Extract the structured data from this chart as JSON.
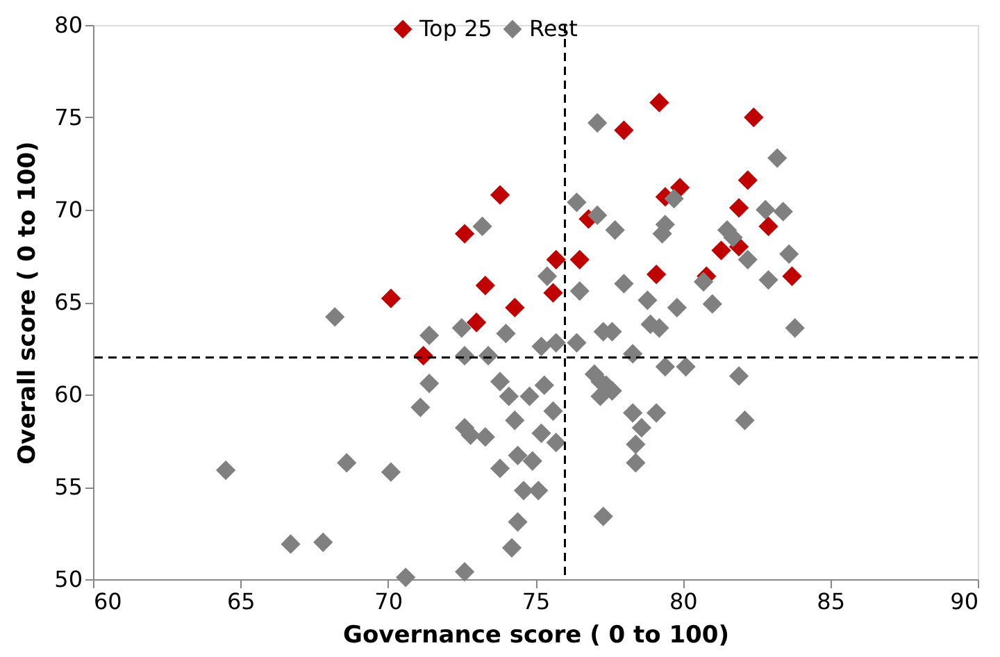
{
  "chart_data": {
    "type": "scatter",
    "xlabel": "Governance score ( 0 to 100)",
    "ylabel": "Overall score ( 0 to 100)",
    "xlim": [
      60,
      90
    ],
    "xticks": [
      60,
      65,
      70,
      75,
      80,
      85,
      90
    ],
    "ylim": [
      50,
      80
    ],
    "yticks": [
      50,
      55,
      60,
      65,
      70,
      75,
      80
    ],
    "grid": false,
    "legend": "top",
    "marker": "diamond",
    "ref_lines": [
      {
        "axis": "x",
        "value": 76,
        "line_style": "dashed",
        "color": "#000000"
      },
      {
        "axis": "y",
        "value": 62,
        "line_style": "dashed",
        "color": "#000000"
      }
    ],
    "series": [
      {
        "name": "Top 25",
        "color": "#c00000",
        "x": [
          78.0,
          73.8,
          72.6,
          76.5,
          75.7,
          73.3,
          75.6,
          70.1,
          74.3,
          73.0,
          71.2,
          76.8,
          79.2,
          82.4,
          82.2,
          79.9,
          79.4,
          81.9,
          82.9,
          81.3,
          81.9,
          79.1,
          80.8,
          83.7
        ],
        "values": [
          74.3,
          70.8,
          68.7,
          67.3,
          67.3,
          65.9,
          65.5,
          65.2,
          64.7,
          63.9,
          62.1,
          69.5,
          75.8,
          75.0,
          71.6,
          71.2,
          70.7,
          70.1,
          69.1,
          67.8,
          68.0,
          66.5,
          66.4,
          66.4
        ]
      },
      {
        "name": "Rest",
        "color": "#808080",
        "x": [
          77.1,
          73.2,
          76.4,
          77.1,
          77.7,
          75.4,
          76.5,
          78.0,
          68.2,
          71.4,
          72.5,
          74.0,
          75.2,
          75.7,
          76.4,
          77.3,
          77.6,
          78.3,
          83.2,
          79.7,
          82.8,
          83.4,
          79.4,
          79.3,
          81.5,
          81.7,
          82.2,
          83.6,
          80.7,
          82.9,
          78.8,
          79.8,
          81.0,
          78.9,
          79.2,
          83.8,
          79.4,
          80.1,
          81.9,
          71.4,
          71.1,
          68.6,
          70.1,
          66.7,
          67.8,
          70.6,
          72.6,
          72.6,
          73.4,
          73.8,
          74.1,
          74.8,
          75.3,
          75.6,
          74.3,
          72.6,
          72.8,
          73.3,
          75.2,
          75.7,
          74.4,
          74.9,
          73.8,
          74.6,
          75.1,
          74.4,
          74.2,
          77.3,
          77.0,
          77.4,
          77.6,
          82.1,
          77.2,
          77.6,
          78.3,
          79.1,
          78.6,
          78.4,
          78.4,
          77.2,
          64.5
        ],
        "values": [
          74.7,
          69.1,
          70.4,
          69.7,
          68.9,
          66.4,
          65.6,
          66.0,
          64.2,
          63.2,
          63.6,
          63.3,
          62.6,
          62.8,
          62.8,
          63.4,
          63.4,
          62.2,
          72.8,
          70.6,
          70.0,
          69.9,
          69.2,
          68.7,
          68.9,
          68.5,
          67.3,
          67.6,
          66.1,
          66.2,
          65.1,
          64.7,
          64.9,
          63.8,
          63.6,
          63.6,
          61.5,
          61.5,
          61.0,
          60.6,
          59.3,
          56.3,
          55.8,
          51.9,
          52.0,
          50.1,
          50.4,
          62.1,
          62.1,
          60.7,
          59.9,
          59.9,
          60.5,
          59.1,
          58.6,
          58.2,
          57.8,
          57.7,
          57.9,
          57.4,
          56.7,
          56.4,
          56.0,
          54.8,
          54.8,
          53.1,
          51.7,
          53.4,
          61.1,
          60.5,
          60.2,
          58.6,
          60.7,
          60.2,
          59.0,
          59.0,
          58.2,
          57.3,
          56.3,
          59.9,
          55.9
        ]
      }
    ]
  }
}
